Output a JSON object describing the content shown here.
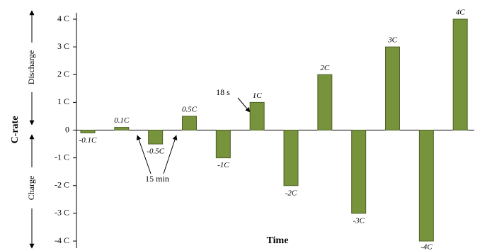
{
  "chart_data": {
    "type": "bar",
    "y_label": "C-rate",
    "x_label": "Time",
    "categories": [
      null,
      null,
      null,
      null,
      null,
      null,
      null,
      null,
      null,
      null,
      null,
      null
    ],
    "values": [
      -0.1,
      0.1,
      -0.5,
      0.5,
      -1,
      1,
      -2,
      2,
      -3,
      3,
      -4,
      4
    ],
    "value_labels": [
      "-0.1C",
      "0.1C",
      "-0.5C",
      "0.5C",
      "-1C",
      "1C",
      "-2C",
      "2C",
      "-3C",
      "3C",
      "-4C",
      "4C"
    ],
    "color": "#77933c",
    "ylim": [
      -4,
      4
    ],
    "yticks": [
      {
        "value": -4,
        "label": "-4 C"
      },
      {
        "value": -3,
        "label": "-3 C"
      },
      {
        "value": -2,
        "label": "-2 C"
      },
      {
        "value": -1,
        "label": "-1 C"
      },
      {
        "value": 0,
        "label": "0"
      },
      {
        "value": 1,
        "label": "1 C"
      },
      {
        "value": 2,
        "label": "2 C"
      },
      {
        "value": 3,
        "label": "3 C"
      },
      {
        "value": 4,
        "label": "4 C"
      }
    ],
    "annotations": [
      "Discharge",
      "Charge",
      "18 s",
      "15 min"
    ]
  }
}
